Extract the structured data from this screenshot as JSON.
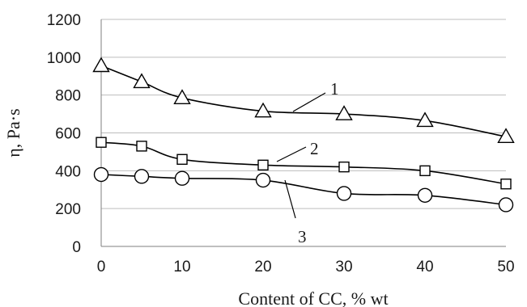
{
  "chart_data": {
    "type": "line",
    "xlabel": "Content of CC, % wt",
    "ylabel": "η, Pa·s",
    "x": [
      0,
      5,
      10,
      20,
      30,
      40,
      50
    ],
    "xticks": [
      0,
      10,
      20,
      30,
      40,
      50
    ],
    "xlim": [
      0,
      50
    ],
    "yticks": [
      0,
      200,
      400,
      600,
      800,
      1000,
      1200
    ],
    "ylim": [
      0,
      1200
    ],
    "grid": "horizontal",
    "series": [
      {
        "name": "1",
        "marker": "triangle",
        "values": [
          955,
          870,
          785,
          715,
          700,
          665,
          580
        ]
      },
      {
        "name": "2",
        "marker": "square",
        "values": [
          550,
          530,
          460,
          430,
          420,
          400,
          330
        ]
      },
      {
        "name": "3",
        "marker": "circle",
        "values": [
          380,
          370,
          360,
          350,
          280,
          270,
          220
        ]
      }
    ]
  }
}
